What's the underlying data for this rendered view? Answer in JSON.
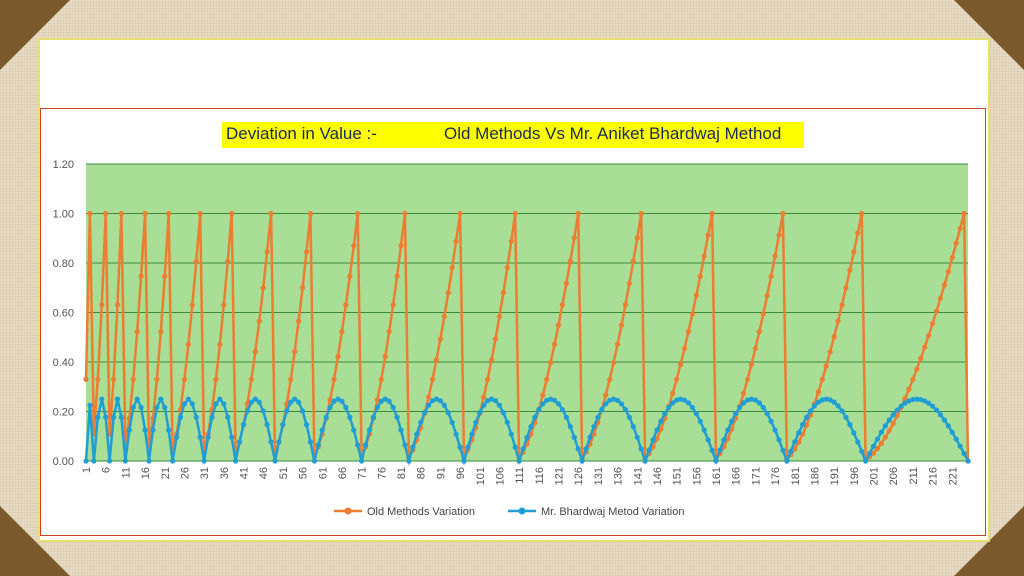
{
  "chart_data": {
    "type": "line",
    "title_part1": "Deviation in Value :-",
    "title_part2": "Old Methods Vs Mr. Aniket Bhardwaj Method",
    "ylim": [
      0,
      1.2
    ],
    "y_ticks": [
      "0.00",
      "0.20",
      "0.40",
      "0.60",
      "0.80",
      "1.00",
      "1.20"
    ],
    "x_ticks": [
      "1",
      "6",
      "11",
      "16",
      "21",
      "26",
      "31",
      "36",
      "41",
      "46",
      "51",
      "56",
      "61",
      "66",
      "71",
      "76",
      "81",
      "86",
      "91",
      "96",
      "101",
      "106",
      "111",
      "116",
      "121",
      "126",
      "131",
      "136",
      "141",
      "146",
      "151",
      "156",
      "161",
      "166",
      "171",
      "176",
      "181",
      "186",
      "191",
      "196",
      "201",
      "206",
      "211",
      "216",
      "221"
    ],
    "x_range": [
      1,
      225
    ],
    "grid": true,
    "legend_position": "bottom",
    "cycle_breaks": [
      1,
      3,
      7,
      11,
      17,
      23,
      31,
      39,
      49,
      59,
      71,
      83,
      97,
      111,
      127,
      143,
      161,
      179,
      199,
      225
    ],
    "series": [
      {
        "name": "Old Methods Variation",
        "color": "#ed7d31",
        "shape": "rising ramp from 0 to 1.00 within each cycle, then drop to 0"
      },
      {
        "name": "Mr. Bhardwaj Metod Variation",
        "color": "#1f9ed6",
        "shape": "arch from 0 up to 0.25 and back to 0 within each cycle"
      }
    ],
    "plot_background": "#a9de96",
    "gridline_color": "#3a8a3a"
  }
}
